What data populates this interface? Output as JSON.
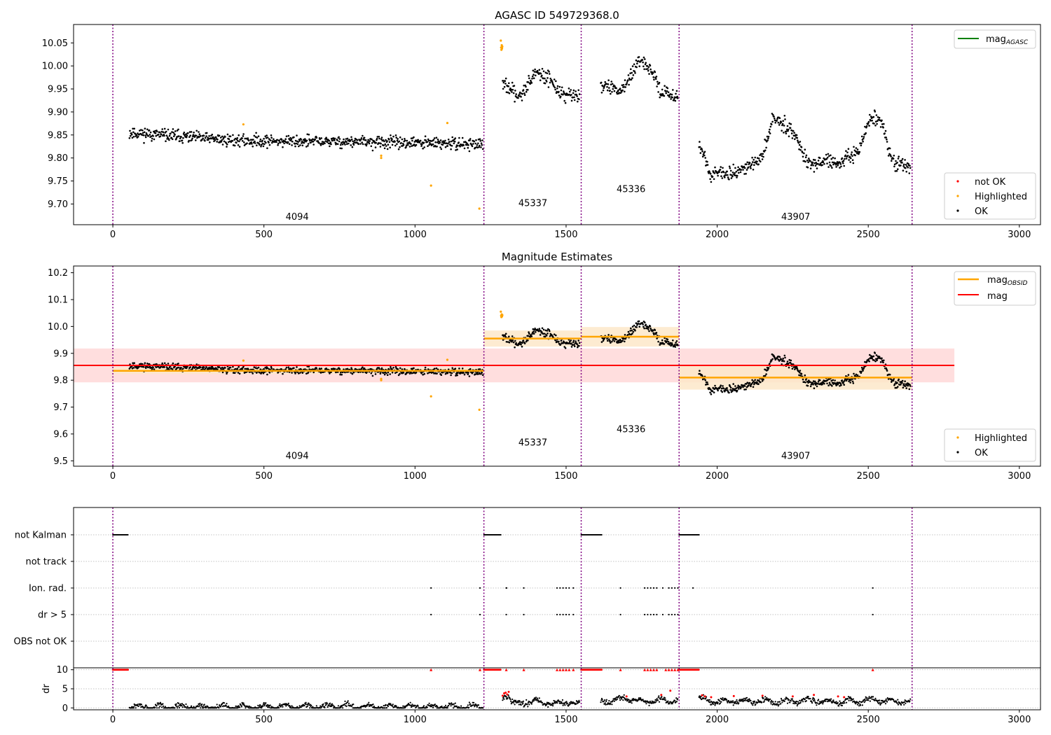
{
  "figure": {
    "panel1_title": "AGASC ID 549729368.0",
    "panel2_title": "Magnitude Estimates"
  },
  "colors": {
    "ok": "#000000",
    "highlighted": "#ffa500",
    "not_ok": "#ff0000",
    "mag_agasc": "#008000",
    "mag_obsid": "#ffa500",
    "mag": "#ff0000",
    "divider": "#800080",
    "mag_band": "#ffd6d6",
    "obsid_band": "#fde7c9"
  },
  "legends": {
    "panel1_top": {
      "mag_agasc": "mag",
      "mag_agasc_sub": "AGASC"
    },
    "panel1_bottom": {
      "not_ok": "not OK",
      "highlighted": "Highlighted",
      "ok": "OK"
    },
    "panel2_top": {
      "mag_obsid": "mag",
      "mag_obsid_sub": "OBSID",
      "mag": "mag"
    },
    "panel2_bottom": {
      "highlighted": "Highlighted",
      "ok": "OK"
    }
  },
  "chart_data": [
    {
      "type": "scatter",
      "title": "AGASC ID 549729368.0",
      "xlim": [
        -130,
        3070
      ],
      "ylim": [
        9.655,
        10.09
      ],
      "xticks": [
        0,
        500,
        1000,
        1500,
        2000,
        2500,
        3000
      ],
      "yticks": [
        9.7,
        9.75,
        9.8,
        9.85,
        9.9,
        9.95,
        10.0,
        10.05
      ],
      "dividers": [
        0,
        1228,
        1550,
        1874,
        2645
      ],
      "obsid_labels": [
        {
          "label": "4094",
          "x": 610,
          "y": 9.673
        },
        {
          "label": "45337",
          "x": 1390,
          "y": 9.703
        },
        {
          "label": "45336",
          "x": 1715,
          "y": 9.733
        },
        {
          "label": "43907",
          "x": 2260,
          "y": 9.673
        }
      ],
      "segments": [
        {
          "obsid": "4094",
          "x_range": [
            55,
            1225
          ],
          "trend": [
            [
              55,
              9.855
            ],
            [
              400,
              9.838
            ],
            [
              800,
              9.835
            ],
            [
              1225,
              9.83
            ]
          ],
          "noise": 0.012
        },
        {
          "obsid": "45337",
          "x_range": [
            1290,
            1545
          ],
          "trend": [
            [
              1290,
              9.96
            ],
            [
              1345,
              9.935
            ],
            [
              1400,
              9.985
            ],
            [
              1445,
              9.975
            ],
            [
              1480,
              9.94
            ],
            [
              1545,
              9.935
            ]
          ],
          "noise": 0.014
        },
        {
          "obsid": "45336",
          "x_range": [
            1615,
            1870
          ],
          "trend": [
            [
              1615,
              9.96
            ],
            [
              1680,
              9.945
            ],
            [
              1745,
              10.01
            ],
            [
              1790,
              9.985
            ],
            [
              1810,
              9.945
            ],
            [
              1870,
              9.935
            ]
          ],
          "noise": 0.012
        },
        {
          "obsid": "43907",
          "x_range": [
            1940,
            2640
          ],
          "trend": [
            [
              1940,
              9.83
            ],
            [
              1980,
              9.765
            ],
            [
              2030,
              9.765
            ],
            [
              2100,
              9.78
            ],
            [
              2150,
              9.8
            ],
            [
              2185,
              9.89
            ],
            [
              2250,
              9.86
            ],
            [
              2300,
              9.79
            ],
            [
              2340,
              9.79
            ],
            [
              2380,
              9.79
            ],
            [
              2420,
              9.79
            ],
            [
              2470,
              9.82
            ],
            [
              2510,
              9.89
            ],
            [
              2545,
              9.88
            ],
            [
              2580,
              9.79
            ],
            [
              2640,
              9.78
            ]
          ],
          "noise": 0.014
        }
      ],
      "highlighted": [
        {
          "x": 432,
          "y": 9.873
        },
        {
          "x": 888,
          "y": 9.8
        },
        {
          "x": 888,
          "y": 9.805
        },
        {
          "x": 1053,
          "y": 9.74
        },
        {
          "x": 1107,
          "y": 9.876
        },
        {
          "x": 1213,
          "y": 9.69
        },
        {
          "x": 1284,
          "y": 10.055
        },
        {
          "x": 1285,
          "y": 10.04
        },
        {
          "x": 1286,
          "y": 10.035
        },
        {
          "x": 1287,
          "y": 10.045
        },
        {
          "x": 1288,
          "y": 10.038
        },
        {
          "x": 1289,
          "y": 10.042
        }
      ],
      "legend_top": [
        "mag_AGASC"
      ],
      "legend_bottom": [
        "not OK",
        "Highlighted",
        "OK"
      ]
    },
    {
      "type": "scatter",
      "title": "Magnitude Estimates",
      "xlim": [
        -130,
        3070
      ],
      "ylim": [
        9.48,
        10.225
      ],
      "xticks": [
        0,
        500,
        1000,
        1500,
        2000,
        2500,
        3000
      ],
      "yticks": [
        9.5,
        9.6,
        9.7,
        9.8,
        9.9,
        10.0,
        10.1,
        10.2
      ],
      "mag": 9.855,
      "mag_band": [
        9.792,
        9.918
      ],
      "mag_band_x": [
        -130,
        2785
      ],
      "obsid_mags": [
        {
          "obsid": "4094",
          "x": [
            0,
            1228
          ],
          "mag": 9.835,
          "band": [
            9.823,
            9.848
          ]
        },
        {
          "obsid": "45337",
          "x": [
            1228,
            1550
          ],
          "mag": 9.955,
          "band": [
            9.925,
            9.985
          ]
        },
        {
          "obsid": "45336",
          "x": [
            1550,
            1874
          ],
          "mag": 9.962,
          "band": [
            9.925,
            9.998
          ]
        },
        {
          "obsid": "43907",
          "x": [
            1874,
            2645
          ],
          "mag": 9.81,
          "band": [
            9.765,
            9.855
          ]
        }
      ],
      "obsid_labels": [
        {
          "label": "4094",
          "x": 610,
          "y": 9.52
        },
        {
          "label": "45337",
          "x": 1390,
          "y": 9.57
        },
        {
          "label": "45336",
          "x": 1715,
          "y": 9.62
        },
        {
          "label": "43907",
          "x": 2260,
          "y": 9.52
        }
      ],
      "legend_top": [
        "mag_OBSID",
        "mag"
      ],
      "legend_bottom": [
        "Highlighted",
        "OK"
      ]
    },
    {
      "type": "scatter",
      "title": "",
      "xlim": [
        -130,
        3070
      ],
      "xticks": [
        0,
        500,
        1000,
        1500,
        2000,
        2500,
        3000
      ],
      "flag_rows": [
        "not Kalman",
        "not track",
        "Ion. rad.",
        "dr > 5",
        "OBS not OK"
      ],
      "dr_ylabel": "dr",
      "dr_ylim": [
        -0.5,
        10.5
      ],
      "dr_yticks": [
        0,
        5,
        10
      ],
      "flags": {
        "not Kalman": [
          [
            0,
            50
          ],
          [
            1228,
            1285
          ],
          [
            1550,
            1618
          ],
          [
            1874,
            1940
          ]
        ],
        "not track": [],
        "Ion. rad.": [
          1053,
          1215,
          1302,
          1303,
          1360,
          1470,
          1480,
          1490,
          1500,
          1510,
          1524,
          1680,
          1760,
          1770,
          1780,
          1790,
          1800,
          1820,
          1840,
          1850,
          1860,
          1870,
          1920,
          2515
        ],
        "dr > 5": [
          1053,
          1215,
          1302,
          1360,
          1470,
          1480,
          1490,
          1500,
          1510,
          1524,
          1680,
          1760,
          1770,
          1780,
          1790,
          1800,
          1820,
          1840,
          1850,
          1860,
          1870,
          2515
        ],
        "OBS not OK": []
      },
      "dr_high_ranges": [
        [
          0,
          50
        ],
        [
          1228,
          1285
        ],
        [
          1550,
          1618
        ],
        [
          1874,
          1940
        ]
      ],
      "dr_high_points": [
        1053,
        1215,
        1302,
        1360,
        1470,
        1480,
        1490,
        1500,
        1510,
        1524,
        1680,
        1760,
        1770,
        1780,
        1790,
        1800,
        1830,
        1840,
        1850,
        1860,
        1870,
        2515
      ],
      "dr_segments": [
        {
          "x_range": [
            55,
            1225
          ],
          "trend": [
            [
              55,
              0.2
            ],
            [
              700,
              0.3
            ],
            [
              780,
              0.6
            ],
            [
              800,
              0.2
            ],
            [
              1225,
              0.3
            ]
          ]
        },
        {
          "x_range": [
            1290,
            1545
          ],
          "trend": [
            [
              1290,
              3.0
            ],
            [
              1310,
              3.5
            ],
            [
              1320,
              1.2
            ],
            [
              1400,
              1.8
            ],
            [
              1450,
              1.0
            ],
            [
              1500,
              1.5
            ],
            [
              1545,
              1.0
            ]
          ]
        },
        {
          "x_range": [
            1615,
            1870
          ],
          "trend": [
            [
              1615,
              1.5
            ],
            [
              1700,
              2.5
            ],
            [
              1750,
              1.5
            ],
            [
              1800,
              2.0
            ],
            [
              1870,
              2.0
            ]
          ]
        },
        {
          "x_range": [
            1940,
            2640
          ],
          "trend": [
            [
              1940,
              2.5
            ],
            [
              2000,
              1.5
            ],
            [
              2100,
              1.8
            ],
            [
              2200,
              1.5
            ],
            [
              2300,
              2.0
            ],
            [
              2400,
              1.5
            ],
            [
              2500,
              2.0
            ],
            [
              2640,
              1.5
            ]
          ]
        }
      ],
      "dr_red_points": [
        {
          "x": 1290,
          "y": 3.2
        },
        {
          "x": 1295,
          "y": 3.8
        },
        {
          "x": 1300,
          "y": 4.0
        },
        {
          "x": 1305,
          "y": 3.5
        },
        {
          "x": 1310,
          "y": 4.2
        },
        {
          "x": 1700,
          "y": 3.0
        },
        {
          "x": 1815,
          "y": 3.4
        },
        {
          "x": 1845,
          "y": 4.5
        },
        {
          "x": 1950,
          "y": 3.3
        },
        {
          "x": 1960,
          "y": 3.0
        },
        {
          "x": 1980,
          "y": 2.8
        },
        {
          "x": 2055,
          "y": 3.1
        },
        {
          "x": 2150,
          "y": 3.2
        },
        {
          "x": 2250,
          "y": 3.0
        },
        {
          "x": 2320,
          "y": 3.4
        },
        {
          "x": 2400,
          "y": 3.0
        },
        {
          "x": 2420,
          "y": 2.8
        }
      ]
    }
  ]
}
